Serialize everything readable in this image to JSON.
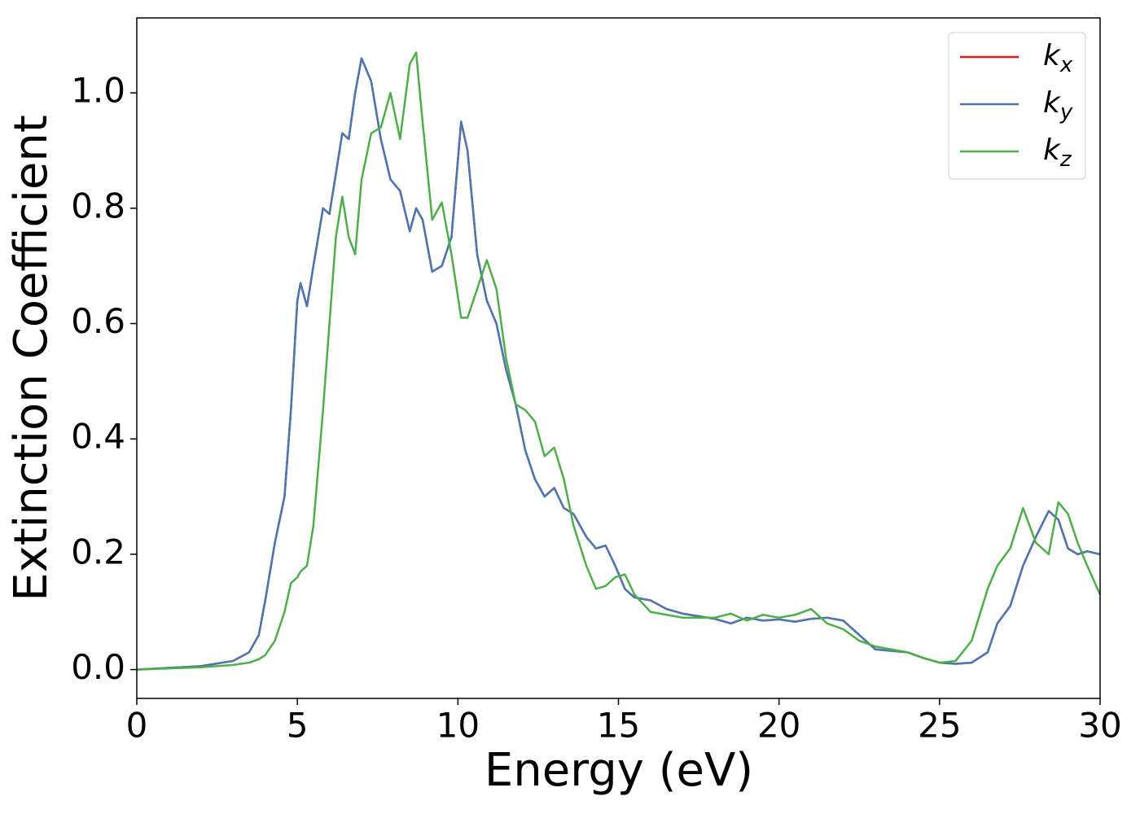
{
  "chart_data": {
    "type": "line",
    "xlabel": "Energy (eV)",
    "ylabel": "Extinction Coefficient",
    "x": [
      0,
      1,
      2,
      3,
      3.5,
      3.8,
      4.0,
      4.3,
      4.6,
      4.8,
      5.0,
      5.1,
      5.3,
      5.5,
      5.8,
      6.0,
      6.2,
      6.4,
      6.6,
      6.8,
      7.0,
      7.3,
      7.6,
      7.9,
      8.2,
      8.5,
      8.7,
      8.9,
      9.2,
      9.5,
      9.8,
      10.1,
      10.3,
      10.6,
      10.9,
      11.2,
      11.5,
      11.8,
      12.1,
      12.4,
      12.7,
      13.0,
      13.3,
      13.6,
      14.0,
      14.3,
      14.6,
      14.9,
      15.2,
      15.5,
      16,
      16.5,
      17,
      18,
      18.5,
      19,
      19.5,
      20,
      20.5,
      21,
      21.5,
      22,
      22.5,
      23,
      24,
      24.5,
      25,
      25.5,
      26,
      26.5,
      26.8,
      27.2,
      27.6,
      28,
      28.4,
      28.7,
      29,
      29.3,
      29.6,
      30
    ],
    "series": [
      {
        "name": "kx",
        "color": "#e41a1c",
        "values": [
          0,
          0.003,
          0.006,
          0.015,
          0.03,
          0.06,
          0.12,
          0.22,
          0.3,
          0.45,
          0.64,
          0.67,
          0.63,
          0.7,
          0.8,
          0.79,
          0.86,
          0.93,
          0.92,
          1.0,
          1.06,
          1.02,
          0.92,
          0.85,
          0.83,
          0.76,
          0.8,
          0.78,
          0.69,
          0.7,
          0.75,
          0.95,
          0.9,
          0.72,
          0.64,
          0.6,
          0.52,
          0.46,
          0.38,
          0.33,
          0.3,
          0.315,
          0.28,
          0.27,
          0.23,
          0.21,
          0.215,
          0.18,
          0.14,
          0.125,
          0.12,
          0.105,
          0.097,
          0.088,
          0.08,
          0.09,
          0.085,
          0.087,
          0.083,
          0.088,
          0.09,
          0.085,
          0.06,
          0.035,
          0.03,
          0.02,
          0.012,
          0.01,
          0.012,
          0.03,
          0.08,
          0.11,
          0.18,
          0.23,
          0.275,
          0.26,
          0.21,
          0.2,
          0.205,
          0.2
        ]
      },
      {
        "name": "ky",
        "color": "#4a78b0",
        "values": [
          0,
          0.003,
          0.006,
          0.015,
          0.03,
          0.06,
          0.12,
          0.22,
          0.3,
          0.45,
          0.64,
          0.67,
          0.63,
          0.7,
          0.8,
          0.79,
          0.86,
          0.93,
          0.92,
          1.0,
          1.06,
          1.02,
          0.92,
          0.85,
          0.83,
          0.76,
          0.8,
          0.78,
          0.69,
          0.7,
          0.75,
          0.95,
          0.9,
          0.72,
          0.64,
          0.6,
          0.52,
          0.46,
          0.38,
          0.33,
          0.3,
          0.315,
          0.28,
          0.27,
          0.23,
          0.21,
          0.215,
          0.18,
          0.14,
          0.125,
          0.12,
          0.105,
          0.097,
          0.088,
          0.08,
          0.09,
          0.085,
          0.087,
          0.083,
          0.088,
          0.09,
          0.085,
          0.06,
          0.035,
          0.03,
          0.02,
          0.012,
          0.01,
          0.012,
          0.03,
          0.08,
          0.11,
          0.18,
          0.23,
          0.275,
          0.26,
          0.21,
          0.2,
          0.205,
          0.2
        ]
      },
      {
        "name": "kz",
        "color": "#4daf4a",
        "values": [
          0,
          0.002,
          0.004,
          0.008,
          0.012,
          0.018,
          0.025,
          0.05,
          0.1,
          0.15,
          0.16,
          0.17,
          0.18,
          0.25,
          0.45,
          0.6,
          0.75,
          0.82,
          0.75,
          0.72,
          0.85,
          0.93,
          0.94,
          1.0,
          0.92,
          1.05,
          1.07,
          0.95,
          0.78,
          0.81,
          0.72,
          0.61,
          0.61,
          0.66,
          0.71,
          0.66,
          0.54,
          0.46,
          0.45,
          0.43,
          0.37,
          0.385,
          0.33,
          0.25,
          0.18,
          0.14,
          0.145,
          0.16,
          0.165,
          0.13,
          0.1,
          0.095,
          0.09,
          0.09,
          0.097,
          0.085,
          0.095,
          0.09,
          0.095,
          0.105,
          0.08,
          0.07,
          0.05,
          0.04,
          0.03,
          0.02,
          0.012,
          0.015,
          0.05,
          0.14,
          0.18,
          0.21,
          0.28,
          0.22,
          0.2,
          0.29,
          0.27,
          0.22,
          0.18,
          0.13
        ]
      }
    ],
    "xlim": [
      0,
      30
    ],
    "xticks": [
      0,
      5,
      10,
      15,
      20,
      25,
      30
    ],
    "ylim": [
      -0.05,
      1.13
    ],
    "yticks": [
      {
        "value": 0,
        "label": "0.0"
      },
      0.2,
      0.4,
      0.6,
      0.8,
      {
        "value": 1,
        "label": "1.0"
      }
    ],
    "grid": false,
    "legend": "upper right"
  }
}
